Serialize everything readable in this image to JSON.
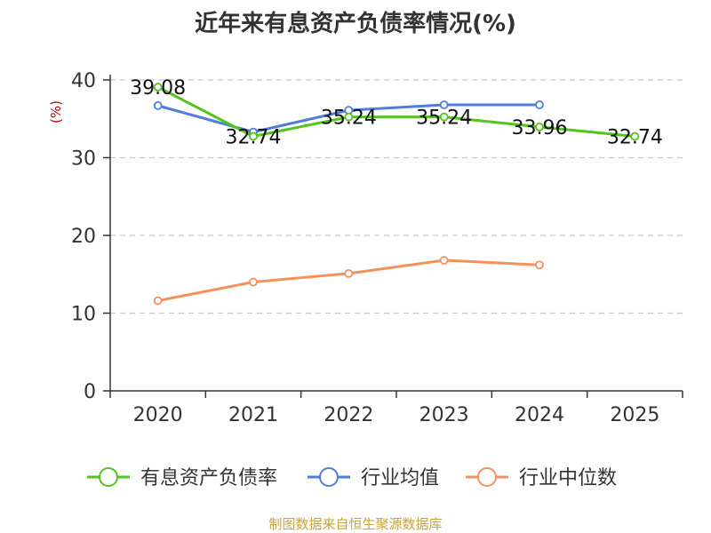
{
  "chart_data": {
    "type": "line",
    "title": "近年来有息资产负债率情况(%)",
    "ylabel": "(%)",
    "xlabel": "",
    "categories": [
      "2020",
      "2021",
      "2022",
      "2023",
      "2024",
      "2025"
    ],
    "ylim": [
      0,
      40
    ],
    "yticks": [
      0,
      10,
      20,
      30,
      40
    ],
    "grid": true,
    "legend_position": "bottom",
    "series": [
      {
        "name": "有息资产负债率",
        "color": "#52c41a",
        "values": [
          39.08,
          32.74,
          35.24,
          35.24,
          33.96,
          32.74
        ],
        "data_labels": [
          "39.08",
          "32.74",
          "35.24",
          "35.24",
          "33.96",
          "32.74"
        ]
      },
      {
        "name": "行业均值",
        "color": "#4e7ddb",
        "values": [
          36.7,
          33.3,
          36.1,
          36.8,
          36.8,
          null
        ]
      },
      {
        "name": "行业中位数",
        "color": "#f4915b",
        "values": [
          11.6,
          14.0,
          15.1,
          16.8,
          16.2,
          null
        ]
      }
    ]
  },
  "footer": {
    "source": "制图数据来自恒生聚源数据库"
  },
  "colors": {
    "axis": "#333333",
    "grid": "#c8c8c8",
    "ylabel": "#cc0000"
  }
}
